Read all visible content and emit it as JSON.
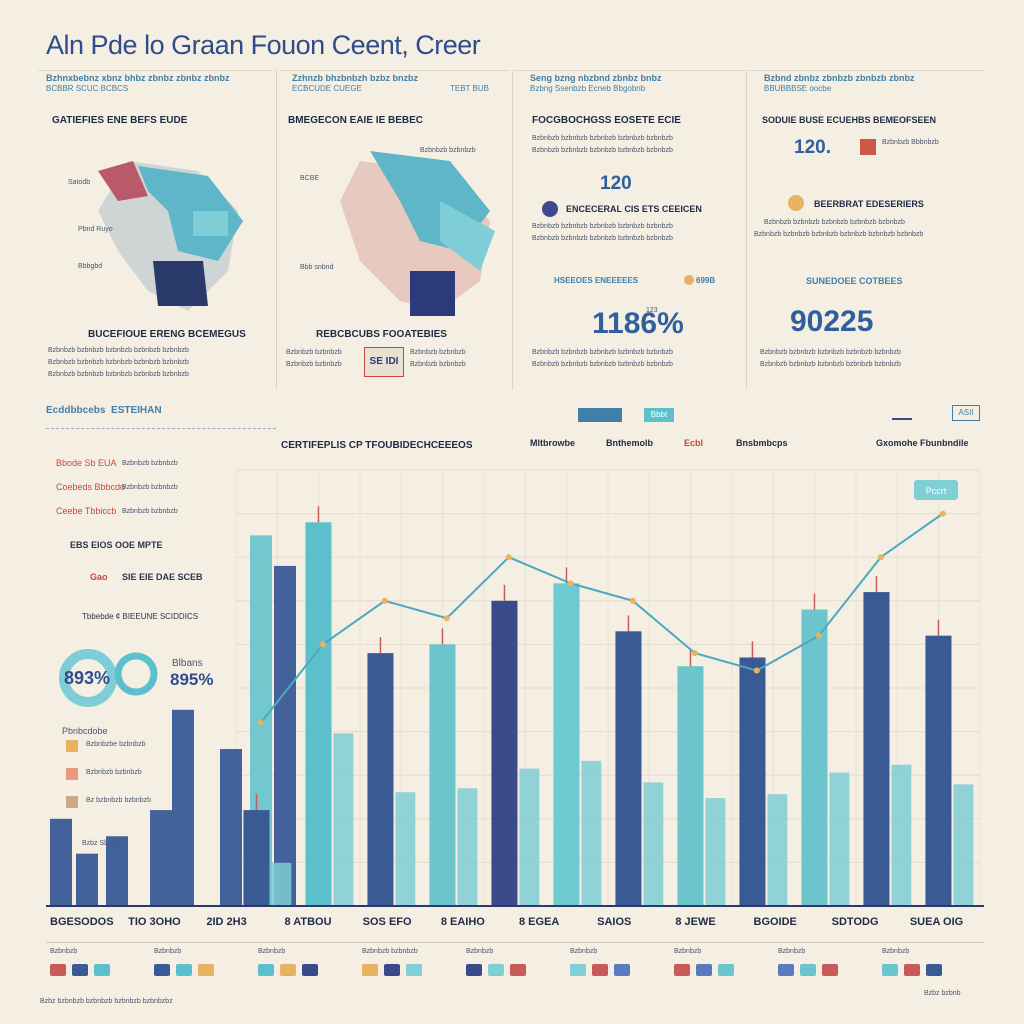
{
  "header": {
    "title": "Aln Pde lo Graan Fouon Ceent, Creer"
  },
  "panels": [
    {
      "id": "p1",
      "top_line": "Bzhnxbebnz xbnz bhbz zbnbz zbnbz zbnbz",
      "sub_line": "BCBBR SCUC BCBCS",
      "heading": "GATIEFIES ENE BEFS EUDE",
      "labels": [
        "Satodb",
        "Pbnd Ruyo",
        "Bbbgbd"
      ],
      "foot_heading": "BUCEFIOUE ERENG BCEMEGUS"
    },
    {
      "id": "p2",
      "top_line": "Zzhnzb bhzbnbzh bzbz bnzbz",
      "sub_line": "ECBCUDE CUEGE",
      "tag": "TEBT BUB",
      "heading": "BMEGECON EAIE IE BEBEC",
      "labels": [
        "BCBE",
        "Bbb snbnd"
      ],
      "badge": "SE IDI",
      "foot_heading": "REBCBCUBS FOOATEBIES"
    },
    {
      "id": "p3",
      "top_line": "Seng bzng nbzbnd zbnbz bnbz",
      "sub_line": "Bzbng Ssenbzb Ecneb Bbgobnb",
      "heading": "FOCGBOCHGSS EOSETE ECIE",
      "num": "120",
      "sub_heading": "ENCECERAL CIS ETS CEEICEN",
      "tag_row": "HSEEOES ENEEEEES",
      "tag_value": "699B",
      "big": "1186%",
      "big_unit": "123"
    },
    {
      "id": "p4",
      "top_line": "Bzbnd zbnbz zbnbzb zbnbzb zbnbz",
      "sub_line": "BBUBBBSE oocbe",
      "heading": "SODUIE BUSE ECUEHBS BEMEOFSEEN",
      "num": "120.",
      "num_side": "Bzbnbzb Bbbnbzb",
      "heading2": "BEERBRAT EDESERIERS",
      "foot_heading": "SUNEDOEE COTBEES",
      "big": "90225"
    }
  ],
  "stats_bar": {
    "label_left": "Ecddbbcebs",
    "label_right": "ESTEIHAN",
    "btn_mid": "Bbbt",
    "btn_right": "ASII"
  },
  "sidebar": {
    "rows": [
      {
        "label": "Bbode Sb EUA",
        "value": "Bzbnbzb bzbnbzb"
      },
      {
        "label": "Coebeds Bbbcdo",
        "value": "Bzbnbzb bzbnbzb"
      },
      {
        "label": "Ceebe Tbbiccb",
        "value": "Bzbnbzb bzbnbzb"
      }
    ],
    "stat1": "EBS EIOS OOE MPTE",
    "stat2_label": "Gao",
    "stat2": "SIE EIE DAE SCEB",
    "stat3": "Tbbebde ¢ BIEEUNE SCIDDICS",
    "pie1": "893%",
    "pie2_label": "Blbans",
    "pie2": "895%",
    "legend_title": "Pbnbcdobe",
    "legend_items": [
      "Bzbnbzbe bzbnbzb",
      "Bzbnbzb bzbnbzb",
      "Bz bzbnbzb bzbnbzb"
    ],
    "legend_colors": [
      "#e8b262",
      "#e89a7a",
      "#c8a98a"
    ],
    "note": "Bzbz Sbzbs"
  },
  "chart_data": {
    "type": "bar",
    "title": "CERTIFEPLIS CP TFOUBIDECHCEEEOS",
    "subtitles": [
      "Mltbrowbe",
      "Bnthemolb",
      "Ecbl",
      "Bnsbmbcps",
      "Gxomohe Fbunbndile"
    ],
    "tag": "Pccrt",
    "categories": [
      "BGESODOS",
      "TIO 3OHO",
      "2ID 2H3",
      "8 ATBOU",
      "SOS EFO",
      "8 EAIHO",
      "8 EGEA",
      "SAIOS",
      "8 JEWE",
      "BGOIDE",
      "SDTODG",
      "SUEA OIG"
    ],
    "values": [
      22,
      88,
      58,
      60,
      70,
      74,
      63,
      55,
      57,
      68,
      72,
      62
    ],
    "colors": [
      "#3a5a96",
      "#5cc0cc",
      "#3a5a96",
      "#6cc5cc",
      "#3a4a8a",
      "#6ccad0",
      "#3a5a96",
      "#6cc5cc",
      "#3a5a96",
      "#6cc5cc",
      "#3a5a96",
      "#3a5a96"
    ],
    "line": [
      42,
      60,
      70,
      66,
      80,
      74,
      70,
      58,
      54,
      62,
      80,
      90
    ],
    "ylim": [
      0,
      100
    ]
  },
  "footer": {
    "legend_labels": [
      "Bzbnbzb",
      "Bzbnbzb",
      "Bzbnbzb",
      "Bzbnbzb bzbnbzb",
      "Bzbnbzb",
      "Bzbnbzb",
      "Bzbnbzb",
      "Bzbnbzb",
      "Bzbnbzb"
    ],
    "chip_colors": [
      "#c95a5a",
      "#3a5a96",
      "#5cc0cc",
      "#e8b262",
      "#3a4a8a",
      "#7fd0d5",
      "#c95a5a",
      "#5a7ac0",
      "#6cc5cc"
    ],
    "note": "Bzbz bzbnbzb bzbnbzb bzbnbzb bzbnbzbz",
    "right_note": "Bzbz bzbnb"
  }
}
